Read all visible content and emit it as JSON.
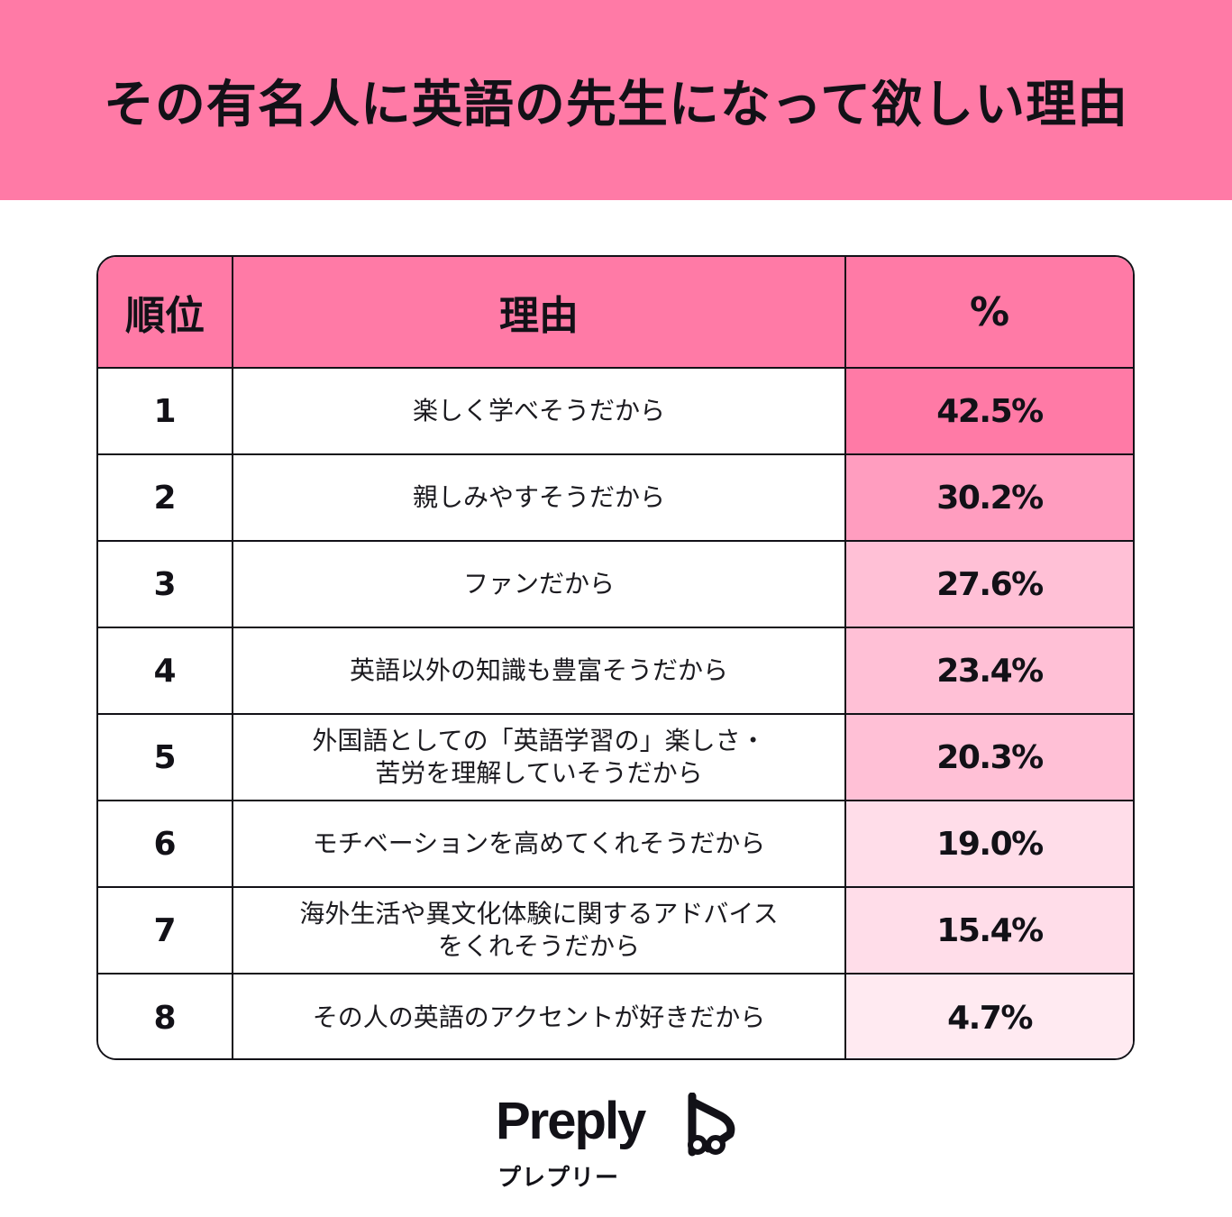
{
  "header": {
    "title": "その有名人に英語の先生になって欲しい理由"
  },
  "table": {
    "columns": [
      "順位",
      "理由",
      "%"
    ],
    "rows": [
      {
        "rank": "1",
        "reason": "楽しく学べそうだから",
        "percent": "42.5%"
      },
      {
        "rank": "2",
        "reason": "親しみやすそうだから",
        "percent": "30.2%"
      },
      {
        "rank": "3",
        "reason": "ファンだから",
        "percent": "27.6%"
      },
      {
        "rank": "4",
        "reason": "英語以外の知識も豊富そうだから",
        "percent": "23.4%"
      },
      {
        "rank": "5",
        "reason": "外国語としての「英語学習の」楽しさ・\n苦労を理解していそうだから",
        "percent": "20.3%"
      },
      {
        "rank": "6",
        "reason": "モチベーションを高めてくれそうだから",
        "percent": "19.0%"
      },
      {
        "rank": "7",
        "reason": "海外生活や異文化体験に関するアドバイス\nをくれそうだから",
        "percent": "15.4%"
      },
      {
        "rank": "8",
        "reason": "その人の英語のアクセントが好きだから",
        "percent": "4.7%"
      }
    ]
  },
  "chart_data": {
    "type": "table",
    "title": "その有名人に英語の先生になって欲しい理由",
    "columns": [
      "順位",
      "理由",
      "%"
    ],
    "categories": [
      "楽しく学べそうだから",
      "親しみやすそうだから",
      "ファンだから",
      "英語以外の知識も豊富そうだから",
      "外国語としての「英語学習の」楽しさ・苦労を理解していそうだから",
      "モチベーションを高めてくれそうだから",
      "海外生活や異文化体験に関するアドバイスをくれそうだから",
      "その人の英語のアクセントが好きだから"
    ],
    "values": [
      42.5,
      30.2,
      27.6,
      23.4,
      20.3,
      19.0,
      15.4,
      4.7
    ],
    "heat_colors": [
      "#ff7aa6",
      "#ff9dbf",
      "#ffc0d6",
      "#ffc0d6",
      "#ffc0d6",
      "#ffdde9",
      "#ffdde9",
      "#ffeaf1"
    ]
  },
  "colors": {
    "brand_pink": "#ff7aa6",
    "text": "#121117",
    "background": "#ffffff"
  },
  "logo": {
    "wordmark": "Preply",
    "kana": "プレプリー",
    "icon": "preply-logo-icon"
  }
}
